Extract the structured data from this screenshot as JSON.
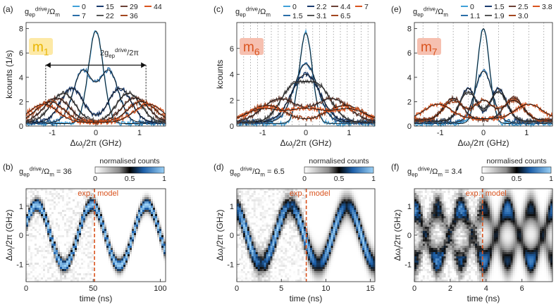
{
  "figure": {
    "colors": {
      "light_blue": "#3fa0d8",
      "dark_blue": "#1a3b6e",
      "grey_dark": "#3a3a3a",
      "grey_mid": "#777777",
      "orange": "#d9531e",
      "accent_yellow_bg": "#fde9a6",
      "accent_yellow_fg": "#e8b400",
      "accent_red_bg": "#f6c0b0",
      "accent_red_fg": "#d9531e",
      "axis": "#222222"
    }
  },
  "chart_data": [
    {
      "id": "a",
      "type": "line",
      "panel_label": "(a)",
      "mode_label": "m",
      "mode_sub": "1",
      "mode_style": "yellow",
      "legend_title_main": "g",
      "legend_title_sub": "ep",
      "legend_title_sup": "drive",
      "legend_title_rest": "/Ω",
      "legend_title_rest_sub": "m",
      "legend_entries": [
        "0",
        "7",
        "15",
        "22",
        "29",
        "36",
        "44"
      ],
      "series_colors": [
        "#3fa0d8",
        "#2a6ea8",
        "#1a3b6e",
        "#555555",
        "#6b4035",
        "#a3461f",
        "#d9531e"
      ],
      "annotation_main": "2g",
      "annotation_sub": "ep",
      "annotation_sup": "drive",
      "annotation_rest": "/2π",
      "annotation_x": [
        -1.15,
        1.15
      ],
      "xlabel": "Δω",
      "xlabel_sub": "l",
      "xlabel_rest": "/2π (GHz)",
      "ylabel": "kcounts (1/s)",
      "xlim": [
        -1.6,
        1.6
      ],
      "ylim": [
        0,
        8.5
      ],
      "xticks": [
        -1,
        0,
        1
      ],
      "yticks": [
        0,
        2,
        4,
        6,
        8
      ],
      "dotted_x": [],
      "series": [
        {
          "name": "0",
          "kind": "gauss",
          "amp": 7.6,
          "centers": [
            0
          ],
          "width": 0.17,
          "base": 0.2
        },
        {
          "name": "7",
          "kind": "gauss",
          "amp": 4.2,
          "centers": [
            -0.3,
            0.3
          ],
          "width": 0.22,
          "base": 0.3
        },
        {
          "name": "15",
          "kind": "gauss",
          "amp": 2.8,
          "centers": [
            -0.55,
            0.55
          ],
          "width": 0.26,
          "base": 0.3
        },
        {
          "name": "22",
          "kind": "gauss",
          "amp": 2.4,
          "centers": [
            -0.75,
            0.75
          ],
          "width": 0.28,
          "base": 0.3
        },
        {
          "name": "29",
          "kind": "gauss",
          "amp": 2.0,
          "centers": [
            -0.9,
            0.9
          ],
          "width": 0.3,
          "base": 0.3
        },
        {
          "name": "36",
          "kind": "gauss",
          "amp": 1.7,
          "centers": [
            -1.05,
            1.05
          ],
          "width": 0.32,
          "base": 0.3
        },
        {
          "name": "44",
          "kind": "gauss",
          "amp": 1.5,
          "centers": [
            -1.2,
            1.2
          ],
          "width": 0.32,
          "base": 0.3
        }
      ]
    },
    {
      "id": "c",
      "type": "line",
      "panel_label": "(c)",
      "mode_label": "m",
      "mode_sub": "6",
      "mode_style": "red",
      "legend_title_main": "g",
      "legend_title_sub": "ep",
      "legend_title_sup": "drive",
      "legend_title_rest": "/Ω",
      "legend_title_rest_sub": "m",
      "legend_entries": [
        "0",
        "1.5",
        "2.2",
        "3.1",
        "4.4",
        "6.5",
        "7"
      ],
      "series_colors": [
        "#3fa0d8",
        "#2a6ea8",
        "#1a3b6e",
        "#555555",
        "#6b4035",
        "#a3461f",
        "#d9531e"
      ],
      "xlabel": "Δω",
      "xlabel_sub": "l",
      "xlabel_rest": "/2π (GHz)",
      "ylabel": "kcounts",
      "xlim": [
        -1.6,
        1.6
      ],
      "ylim": [
        0,
        8
      ],
      "xticks": [
        -1,
        0,
        1
      ],
      "yticks": [
        0,
        2,
        4,
        6
      ],
      "dotted_x": [
        -1.44,
        -1.28,
        -1.12,
        -0.96,
        -0.8,
        -0.64,
        -0.48,
        -0.32,
        -0.16,
        0,
        0.16,
        0.32,
        0.48,
        0.64,
        0.8,
        0.96,
        1.12,
        1.28,
        1.44
      ],
      "series": [
        {
          "name": "0",
          "kind": "gauss",
          "amp": 7.0,
          "centers": [
            0
          ],
          "width": 0.15,
          "base": 0.2
        },
        {
          "name": "1.5",
          "kind": "gauss",
          "amp": 4.5,
          "centers": [
            0
          ],
          "width": 0.27,
          "base": 0.3
        },
        {
          "name": "2.2",
          "kind": "gauss",
          "amp": 3.7,
          "centers": [
            0
          ],
          "width": 0.33,
          "base": 0.3
        },
        {
          "name": "3.1",
          "kind": "gauss",
          "amp": 2.6,
          "centers": [
            -0.3,
            0.3
          ],
          "width": 0.3,
          "base": 0.3
        },
        {
          "name": "4.4",
          "kind": "gauss",
          "amp": 1.8,
          "centers": [
            -0.6,
            0.6
          ],
          "width": 0.4,
          "base": 0.3
        },
        {
          "name": "6.5",
          "kind": "gauss",
          "amp": 1.3,
          "centers": [
            -0.9,
            0.9
          ],
          "width": 0.42,
          "base": 0.3
        },
        {
          "name": "7",
          "kind": "gauss",
          "amp": 1.0,
          "centers": [
            -1.0,
            0.0,
            1.0
          ],
          "width": 0.4,
          "base": 0.3
        }
      ]
    },
    {
      "id": "e",
      "type": "line",
      "panel_label": "(e)",
      "mode_label": "m",
      "mode_sub": "7",
      "mode_style": "red",
      "legend_title_main": "g",
      "legend_title_sub": "ep",
      "legend_title_sup": "drive",
      "legend_title_rest": "/Ω",
      "legend_title_rest_sub": "m",
      "legend_entries": [
        "0",
        "1.1",
        "1.5",
        "1.9",
        "2.5",
        "3.0",
        "3.8"
      ],
      "series_colors": [
        "#3fa0d8",
        "#2a6ea8",
        "#1a3b6e",
        "#555555",
        "#6b4035",
        "#a3461f",
        "#d9531e"
      ],
      "xlabel": "Δω",
      "xlabel_sub": "l",
      "xlabel_rest": "/2π (GHz)",
      "ylabel": "",
      "xlim": [
        -1.6,
        1.6
      ],
      "ylim": [
        0,
        8.5
      ],
      "xticks": [
        -1,
        0,
        1
      ],
      "yticks": [
        0,
        2,
        4,
        6,
        8
      ],
      "dotted_x": [
        -1.4,
        -1.05,
        -0.7,
        -0.35,
        0,
        0.35,
        0.7,
        1.05,
        1.4
      ],
      "series": [
        {
          "name": "0",
          "kind": "gauss",
          "amp": 7.8,
          "centers": [
            0
          ],
          "width": 0.14,
          "base": 0.2
        },
        {
          "name": "1.1",
          "kind": "gauss",
          "amp": 4.2,
          "centers": [
            0
          ],
          "width": 0.2,
          "base": 0.3
        },
        {
          "name": "1.5",
          "kind": "gauss",
          "amp": 2.7,
          "centers": [
            -0.35,
            0.35
          ],
          "width": 0.18,
          "base": 0.4
        },
        {
          "name": "1.9",
          "kind": "gauss",
          "amp": 2.4,
          "centers": [
            -0.35,
            0.35
          ],
          "width": 0.2,
          "base": 0.4
        },
        {
          "name": "2.5",
          "kind": "gauss",
          "amp": 1.8,
          "centers": [
            -0.7,
            0.7
          ],
          "width": 0.22,
          "base": 0.5
        },
        {
          "name": "3.0",
          "kind": "gauss",
          "amp": 1.6,
          "centers": [
            -0.7,
            0.0,
            0.7
          ],
          "width": 0.22,
          "base": 0.5
        },
        {
          "name": "3.8",
          "kind": "gauss",
          "amp": 1.2,
          "centers": [
            -1.05,
            1.05
          ],
          "width": 0.3,
          "base": 0.6
        }
      ]
    },
    {
      "id": "b",
      "type": "heatmap",
      "panel_label": "(b)",
      "drive_main": "g",
      "drive_sub": "ep",
      "drive_sup": "drive",
      "drive_rest": "/Ω",
      "drive_rest_sub": "m",
      "drive_value": "= 36",
      "colorbar_label": "normalised counts",
      "colorbar_ticks": [
        "0",
        "0.5",
        "1"
      ],
      "split_label_left": "exp.",
      "split_label_right": "model",
      "split_x": 51,
      "xlabel": "time (ns)",
      "ylabel": "Δω",
      "ylabel_sub": "l",
      "ylabel_rest": "/2π (GHz)",
      "xlim": [
        0,
        104
      ],
      "ylim": [
        -1.6,
        1.6
      ],
      "xticks": [
        0,
        50,
        100
      ],
      "yticks": [
        -1,
        0,
        1
      ],
      "model": "sine",
      "amp": 1.05,
      "period": 41,
      "phase": 0.35,
      "width": 0.16
    },
    {
      "id": "d",
      "type": "heatmap",
      "panel_label": "(d)",
      "drive_main": "g",
      "drive_sub": "ep",
      "drive_sup": "drive",
      "drive_rest": "/Ω",
      "drive_rest_sub": "m",
      "drive_value": "= 6.5",
      "colorbar_label": "normalised counts",
      "colorbar_ticks": [
        "0",
        "0.5",
        "1"
      ],
      "split_label_left": "exp.",
      "split_label_right": "model",
      "split_x": 7.8,
      "xlabel": "time (ns)",
      "ylabel": "Δω",
      "ylabel_sub": "l",
      "ylabel_rest": "/2π (GHz)",
      "xlim": [
        0,
        15.5
      ],
      "ylim": [
        -1.6,
        1.6
      ],
      "xticks": [
        0,
        5,
        10,
        15
      ],
      "yticks": [
        -1,
        0,
        1
      ],
      "model": "blobs",
      "amp": 1.0,
      "period": 6.4,
      "phase": 2.0,
      "width": 0.28
    },
    {
      "id": "f",
      "type": "heatmap",
      "panel_label": "(f)",
      "drive_main": "g",
      "drive_sub": "ep",
      "drive_sup": "drive",
      "drive_rest": "/Ω",
      "drive_rest_sub": "m",
      "drive_value": "= 3.4",
      "colorbar_label": "normalised counts",
      "colorbar_ticks": [
        "0",
        "0.5",
        "1"
      ],
      "split_label_left": "exp.",
      "split_label_right": "model",
      "split_x": 3.8,
      "xlabel": "time (ns)",
      "ylabel": "Δω",
      "ylabel_sub": "l",
      "ylabel_rest": "/2π (GHz)",
      "xlim": [
        0,
        7.7
      ],
      "ylim": [
        -1.6,
        1.6
      ],
      "xticks": [
        0,
        2,
        4,
        6
      ],
      "yticks": [
        -1,
        0,
        1
      ],
      "model": "grid",
      "amp": 0.9,
      "period": 2.6,
      "phase": 0.0,
      "width": 0.35
    }
  ]
}
